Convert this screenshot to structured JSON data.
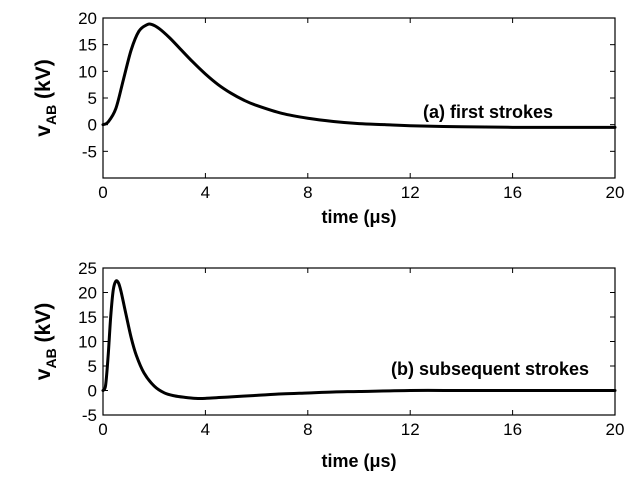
{
  "chart_data": [
    {
      "type": "line",
      "annotation": "(a) first strokes",
      "xlabel": "time (μs)",
      "ylabel": {
        "main": "v",
        "sub": "AB",
        "unit": " (kV)"
      },
      "xlim": [
        0,
        20
      ],
      "ylim": [
        -10,
        20
      ],
      "xticks": [
        0,
        4,
        8,
        12,
        16,
        20
      ],
      "yticks": [
        -5,
        0,
        5,
        10,
        15,
        20
      ],
      "grid": false,
      "series": [
        {
          "x": [
            0,
            0.2,
            0.5,
            0.8,
            1.1,
            1.4,
            1.7,
            1.9,
            2.2,
            2.6,
            3.0,
            3.5,
            4.0,
            4.5,
            5.0,
            5.5,
            6.0,
            7.0,
            8.0,
            9.0,
            10.0,
            11.0,
            12.0,
            14.0,
            16.0,
            18.0,
            20.0
          ],
          "y": [
            0,
            0.5,
            3.0,
            8.5,
            14.0,
            17.5,
            18.7,
            18.8,
            18.0,
            16.3,
            14.3,
            11.8,
            9.5,
            7.5,
            5.9,
            4.6,
            3.6,
            2.1,
            1.2,
            0.6,
            0.2,
            0.0,
            -0.2,
            -0.4,
            -0.5,
            -0.5,
            -0.5
          ]
        }
      ]
    },
    {
      "type": "line",
      "annotation": "(b) subsequent strokes",
      "xlabel": "time (μs)",
      "ylabel": {
        "main": "v",
        "sub": "AB",
        "unit": " (kV)"
      },
      "xlim": [
        0,
        20
      ],
      "ylim": [
        -5,
        25
      ],
      "xticks": [
        0,
        4,
        8,
        12,
        16,
        20
      ],
      "yticks": [
        -5,
        0,
        5,
        10,
        15,
        20,
        25
      ],
      "grid": false,
      "series": [
        {
          "x": [
            0,
            0.1,
            0.2,
            0.3,
            0.4,
            0.5,
            0.6,
            0.7,
            0.9,
            1.1,
            1.3,
            1.6,
            2.0,
            2.4,
            2.8,
            3.2,
            3.6,
            4.0,
            5.0,
            6.0,
            7.0,
            8.0,
            9.0,
            10.0,
            12.0,
            14.0,
            16.0,
            18.0,
            20.0
          ],
          "y": [
            0,
            1.0,
            7.0,
            15.0,
            20.5,
            22.3,
            22.0,
            20.3,
            15.5,
            10.8,
            7.2,
            3.6,
            0.9,
            -0.5,
            -1.1,
            -1.4,
            -1.6,
            -1.6,
            -1.3,
            -1.0,
            -0.7,
            -0.5,
            -0.3,
            -0.2,
            0.0,
            0.0,
            0.0,
            0.0,
            0.0
          ]
        }
      ]
    }
  ]
}
